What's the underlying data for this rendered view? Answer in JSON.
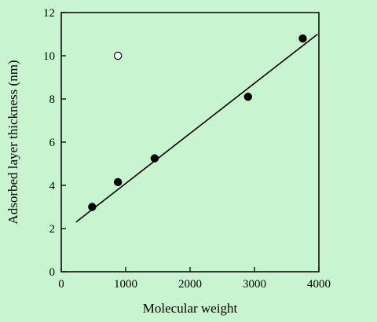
{
  "background_color": "#c8f5d0",
  "chart_data": {
    "type": "scatter",
    "title": "",
    "xlabel": "Molecular weight",
    "ylabel": "Adsorbed layer thickness (nm)",
    "xlim": [
      0,
      4000
    ],
    "ylim": [
      0,
      12
    ],
    "x_ticks": [
      0,
      1000,
      2000,
      3000,
      4000
    ],
    "y_ticks": [
      0,
      2,
      4,
      6,
      8,
      10,
      12
    ],
    "grid": false,
    "legend": "none",
    "series": [
      {
        "marker": "filled-circle",
        "color": "#000000",
        "points": [
          {
            "x": 480,
            "y": 3.0
          },
          {
            "x": 880,
            "y": 4.15
          },
          {
            "x": 1450,
            "y": 5.25
          },
          {
            "x": 2900,
            "y": 8.1
          },
          {
            "x": 3750,
            "y": 10.8
          }
        ]
      },
      {
        "marker": "open-circle",
        "color": "#000000",
        "points": [
          {
            "x": 880,
            "y": 10.0
          }
        ]
      }
    ],
    "fit_line": {
      "x": [
        230,
        3980
      ],
      "y": [
        2.3,
        11.0
      ]
    }
  }
}
